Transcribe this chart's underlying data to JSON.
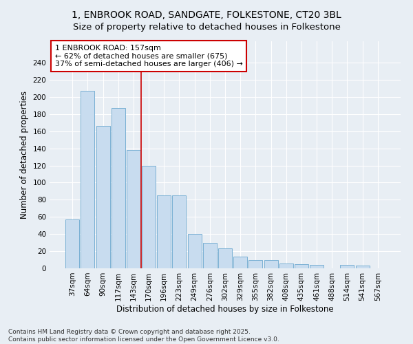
{
  "title_line1": "1, ENBROOK ROAD, SANDGATE, FOLKESTONE, CT20 3BL",
  "title_line2": "Size of property relative to detached houses in Folkestone",
  "xlabel": "Distribution of detached houses by size in Folkestone",
  "ylabel": "Number of detached properties",
  "categories": [
    "37sqm",
    "64sqm",
    "90sqm",
    "117sqm",
    "143sqm",
    "170sqm",
    "196sqm",
    "223sqm",
    "249sqm",
    "276sqm",
    "302sqm",
    "329sqm",
    "355sqm",
    "382sqm",
    "408sqm",
    "435sqm",
    "461sqm",
    "488sqm",
    "514sqm",
    "541sqm",
    "567sqm"
  ],
  "values": [
    57,
    207,
    166,
    187,
    138,
    120,
    85,
    85,
    40,
    30,
    23,
    14,
    10,
    10,
    6,
    5,
    4,
    0,
    4,
    3,
    0
  ],
  "bar_color": "#c8dcef",
  "bar_edge_color": "#7ab0d4",
  "vline_x": 4.5,
  "vline_color": "#cc0000",
  "annotation_text": "1 ENBROOK ROAD: 157sqm\n← 62% of detached houses are smaller (675)\n37% of semi-detached houses are larger (406) →",
  "annotation_box_color": "#ffffff",
  "annotation_box_edge": "#cc0000",
  "ylim": [
    0,
    265
  ],
  "yticks": [
    0,
    20,
    40,
    60,
    80,
    100,
    120,
    140,
    160,
    180,
    200,
    220,
    240
  ],
  "background_color": "#e8eef4",
  "grid_color": "#ffffff",
  "footer_line1": "Contains HM Land Registry data © Crown copyright and database right 2025.",
  "footer_line2": "Contains public sector information licensed under the Open Government Licence v3.0.",
  "title_fontsize": 10,
  "subtitle_fontsize": 9.5,
  "axis_label_fontsize": 8.5,
  "tick_fontsize": 7.5,
  "annotation_fontsize": 8,
  "footer_fontsize": 6.5
}
